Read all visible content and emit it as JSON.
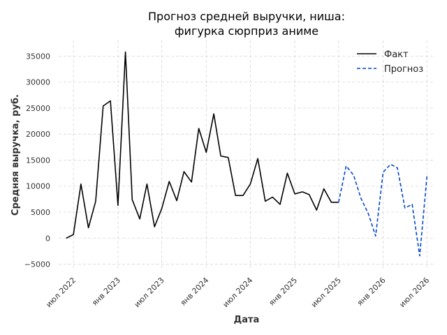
{
  "chart_data": {
    "type": "line",
    "title_lines": [
      "Прогноз средней выручки, ниша:",
      "фигурка сюрприз аниме"
    ],
    "xlabel": "Дата",
    "ylabel": "Средняя выручка, руб.",
    "x_range": [
      "2022-05-01",
      "2026-08-01"
    ],
    "ylim": [
      -6000,
      38000
    ],
    "yticks": [
      -5000,
      0,
      5000,
      10000,
      15000,
      20000,
      25000,
      30000,
      35000
    ],
    "ytick_labels": [
      "−5000",
      "0",
      "5000",
      "10000",
      "15000",
      "20000",
      "25000",
      "30000",
      "35000"
    ],
    "xticks": [
      {
        "date": "2022-07-01",
        "label": "июл 2022"
      },
      {
        "date": "2023-01-01",
        "label": "янв 2023"
      },
      {
        "date": "2023-07-01",
        "label": "июл 2023"
      },
      {
        "date": "2024-01-01",
        "label": "янв 2024"
      },
      {
        "date": "2024-07-01",
        "label": "июл 2024"
      },
      {
        "date": "2025-01-01",
        "label": "янв 2025"
      },
      {
        "date": "2025-07-01",
        "label": "июл 2025"
      },
      {
        "date": "2026-01-01",
        "label": "янв 2026"
      },
      {
        "date": "2026-07-01",
        "label": "июл 2026"
      }
    ],
    "grid": true,
    "legend_position": "top-right",
    "series": [
      {
        "name": "Факт",
        "color": "#000000",
        "style": "solid",
        "dates": [
          "2022-06-01",
          "2022-07-01",
          "2022-08-01",
          "2022-09-01",
          "2022-10-01",
          "2022-11-01",
          "2022-12-01",
          "2023-01-01",
          "2023-02-01",
          "2023-03-01",
          "2023-04-01",
          "2023-05-01",
          "2023-06-01",
          "2023-07-01",
          "2023-08-01",
          "2023-09-01",
          "2023-10-01",
          "2023-11-01",
          "2023-12-01",
          "2024-01-01",
          "2024-02-01",
          "2024-03-01",
          "2024-04-01",
          "2024-05-01",
          "2024-06-01",
          "2024-07-01",
          "2024-08-01",
          "2024-09-01",
          "2024-10-01",
          "2024-11-01",
          "2024-12-01",
          "2025-01-01",
          "2025-02-01",
          "2025-03-01",
          "2025-04-01",
          "2025-05-01",
          "2025-06-01",
          "2025-07-01"
        ],
        "values": [
          0,
          700,
          10400,
          2000,
          7100,
          25400,
          26400,
          6300,
          35800,
          7400,
          3700,
          10400,
          2200,
          5700,
          10900,
          7200,
          12800,
          10800,
          21100,
          16500,
          23900,
          15800,
          15500,
          8200,
          8200,
          10400,
          15300,
          7100,
          7900,
          6500,
          12500,
          8500,
          8900,
          8400,
          5400,
          9500,
          6900,
          6900
        ]
      },
      {
        "name": "Прогноз",
        "color": "#0044cc",
        "style": "dashed",
        "dates": [
          "2025-07-01",
          "2025-08-01",
          "2025-09-01",
          "2025-10-01",
          "2025-11-01",
          "2025-12-01",
          "2026-01-01",
          "2026-02-01",
          "2026-03-01",
          "2026-04-01",
          "2026-05-01",
          "2026-06-01",
          "2026-07-01"
        ],
        "values": [
          6900,
          13900,
          12100,
          7700,
          4700,
          400,
          12700,
          14200,
          13500,
          5800,
          6500,
          -3400,
          11900
        ]
      }
    ]
  }
}
